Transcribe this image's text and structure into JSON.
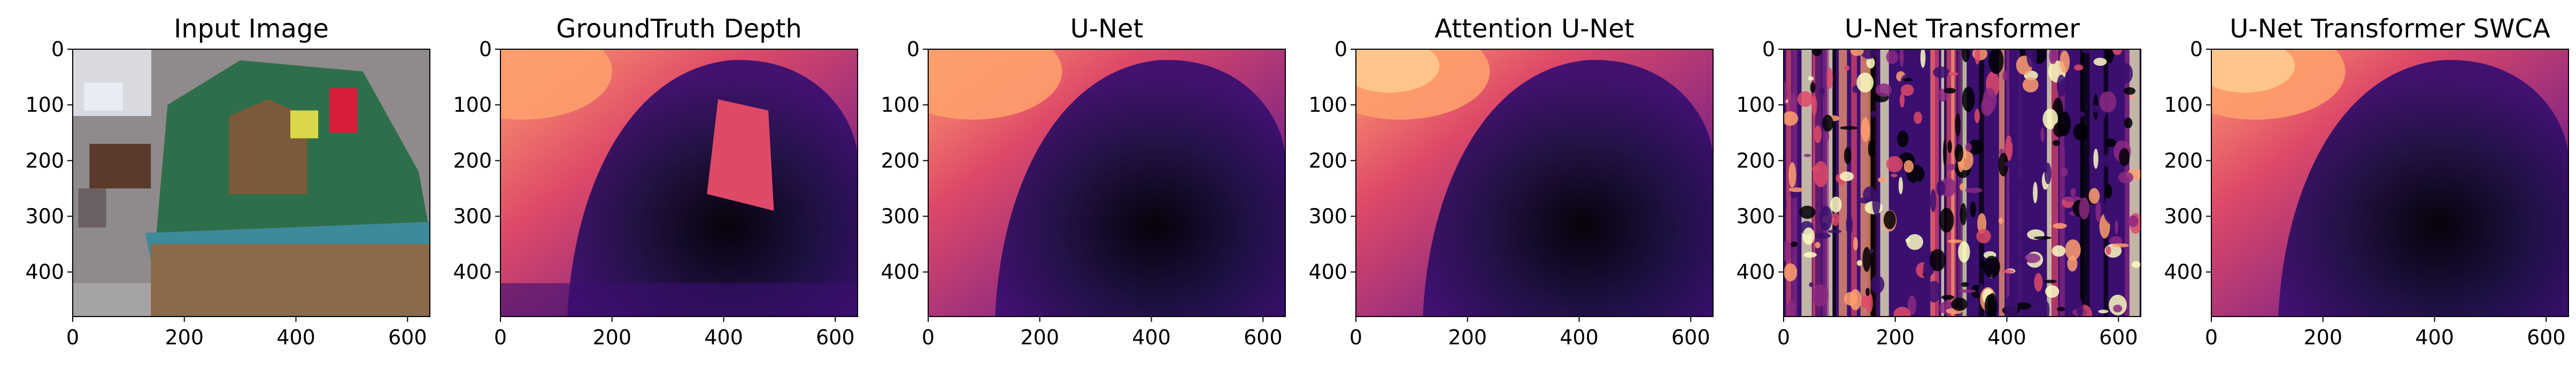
{
  "figure": {
    "panels": [
      {
        "title": "Input Image",
        "kind": "rgb"
      },
      {
        "title": "GroundTruth Depth",
        "kind": "gt"
      },
      {
        "title": "U-Net",
        "kind": "unet"
      },
      {
        "title": "Attention U-Net",
        "kind": "attn"
      },
      {
        "title": "U-Net Transformer",
        "kind": "noisy"
      },
      {
        "title": "U-Net Transformer SWCA",
        "kind": "swca"
      }
    ],
    "axes": {
      "x_ticks": [
        0,
        200,
        400,
        600
      ],
      "y_ticks": [
        0,
        100,
        200,
        300,
        400
      ],
      "x_range": [
        0,
        640
      ],
      "y_range": [
        0,
        480
      ]
    },
    "colormap": "magma",
    "colors": {
      "magma_dark": "#000004",
      "magma_purple": "#3b0f70",
      "magma_magenta": "#8c2981",
      "magma_pink": "#de4968",
      "magma_orange": "#fe9f6d",
      "magma_light": "#fcfdbf"
    }
  }
}
